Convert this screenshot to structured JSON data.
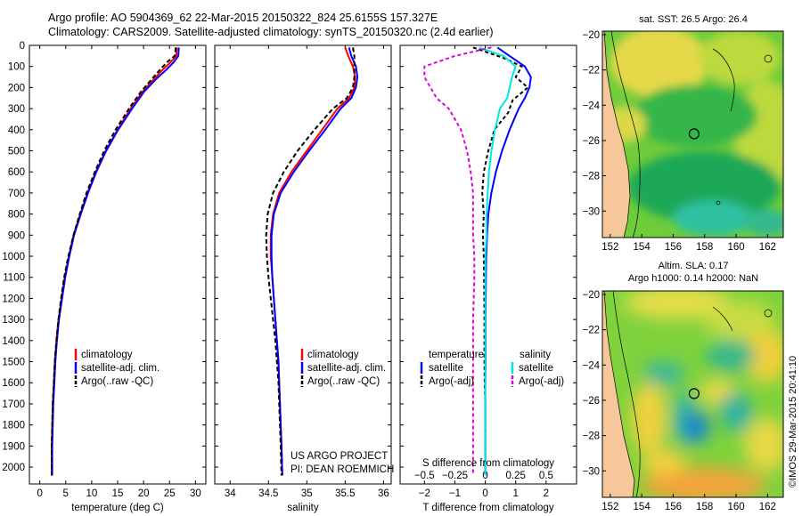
{
  "header": {
    "title_line1": "Argo profile: AO 5904369_62 22-Mar-2015 20150322_824 25.6155S 157.327E",
    "title_line2": "Climatology: CARS2009. Satellite-adjusted climatology: synTS_20150320.nc (2.4d earlier)"
  },
  "colors": {
    "climatology": "#ff0000",
    "satellite": "#0000ff",
    "argo": "#000000",
    "salinity_satellite": "#00e5e5",
    "salinity_argo": "#e000e0",
    "land": "#f7c79c"
  },
  "legend": {
    "climatology": "climatology",
    "satellite_adj": "satellite-adj. clim.",
    "argo_raw": "Argo(..raw -QC)",
    "temperature_header": "temperature",
    "salinity_header": "salinity",
    "satellite": "satellite",
    "argo_adj": "Argo(-adj)"
  },
  "credits": {
    "project": "US ARGO PROJECT",
    "pi": "PI: DEAN ROEMMICH",
    "imos": "©IMOS 29-Mar-2015 20:41:10"
  },
  "chart_data": [
    {
      "type": "line",
      "name": "temperature-profile",
      "xlabel": "temperature (deg C)",
      "ylabel": "",
      "xlim": [
        -2,
        32
      ],
      "ylim": [
        2080,
        0
      ],
      "xticks": [
        0,
        5,
        10,
        15,
        20,
        25,
        30
      ],
      "yticks": [
        0,
        100,
        200,
        300,
        400,
        500,
        600,
        700,
        800,
        900,
        1000,
        1100,
        1200,
        1300,
        1400,
        1500,
        1600,
        1700,
        1800,
        1900,
        2000
      ],
      "series": [
        {
          "name": "climatology",
          "color": "#ff0000",
          "dash": "",
          "x": [
            26.4,
            26.3,
            25.2,
            23.5,
            22.0,
            19.8,
            17.5,
            15.0,
            12.7,
            10.8,
            9.2,
            7.8,
            6.5,
            5.6,
            4.8,
            4.2,
            3.6,
            3.2,
            2.9,
            2.7,
            2.5,
            2.4,
            2.3,
            2.3
          ],
          "y": [
            10,
            50,
            80,
            120,
            160,
            220,
            300,
            400,
            500,
            600,
            700,
            800,
            900,
            1000,
            1100,
            1200,
            1300,
            1400,
            1500,
            1600,
            1700,
            1800,
            1900,
            2040
          ]
        },
        {
          "name": "satellite-adj. clim.",
          "color": "#0000ff",
          "dash": "",
          "x": [
            26.8,
            26.7,
            25.8,
            24.2,
            22.4,
            20.1,
            17.8,
            15.1,
            12.8,
            10.9,
            9.3,
            7.9,
            6.6,
            5.7,
            4.9,
            4.3,
            3.7,
            3.3,
            3.0,
            2.8,
            2.6,
            2.5,
            2.4,
            2.4
          ],
          "y": [
            10,
            50,
            80,
            120,
            160,
            220,
            300,
            400,
            500,
            600,
            700,
            800,
            900,
            1000,
            1100,
            1200,
            1300,
            1400,
            1500,
            1600,
            1700,
            1800,
            1900,
            2040
          ]
        },
        {
          "name": "Argo(..raw -QC)",
          "color": "#000000",
          "dash": "5,3",
          "x": [
            26.2,
            26.0,
            24.5,
            23.0,
            21.6,
            19.5,
            17.2,
            14.6,
            12.4,
            10.6,
            9.0,
            7.7,
            6.5,
            5.5,
            4.7,
            4.1,
            3.6,
            3.2,
            2.9,
            2.7,
            2.5,
            2.4,
            2.3,
            2.3
          ],
          "y": [
            10,
            50,
            80,
            120,
            160,
            220,
            300,
            400,
            500,
            600,
            700,
            800,
            900,
            1000,
            1100,
            1200,
            1300,
            1400,
            1500,
            1600,
            1700,
            1800,
            1900,
            2040
          ]
        }
      ]
    },
    {
      "type": "line",
      "name": "salinity-profile",
      "xlabel": "salinity",
      "ylabel": "",
      "xlim": [
        33.8,
        36.1
      ],
      "ylim": [
        2080,
        0
      ],
      "xticks": [
        34,
        34.5,
        35,
        35.5,
        36
      ],
      "xtick_labels": [
        "34",
        "34.5",
        "35",
        "35.5",
        "36"
      ],
      "series": [
        {
          "name": "climatology",
          "color": "#ff0000",
          "dash": "",
          "x": [
            35.5,
            35.54,
            35.6,
            35.63,
            35.62,
            35.55,
            35.4,
            35.2,
            35.0,
            34.8,
            34.64,
            34.56,
            34.53,
            34.53,
            34.55,
            34.57,
            34.59,
            34.61,
            34.63,
            34.64,
            34.65,
            34.66,
            34.67,
            34.68
          ],
          "y": [
            10,
            50,
            100,
            150,
            200,
            250,
            300,
            400,
            500,
            600,
            700,
            800,
            900,
            1000,
            1100,
            1200,
            1300,
            1400,
            1500,
            1600,
            1700,
            1800,
            1900,
            2040
          ]
        },
        {
          "name": "satellite-adj. clim.",
          "color": "#0000ff",
          "dash": "",
          "x": [
            35.55,
            35.58,
            35.64,
            35.66,
            35.64,
            35.58,
            35.44,
            35.24,
            35.03,
            34.83,
            34.66,
            34.57,
            34.54,
            34.54,
            34.55,
            34.57,
            34.59,
            34.61,
            34.63,
            34.64,
            34.65,
            34.66,
            34.67,
            34.68
          ],
          "y": [
            10,
            50,
            100,
            150,
            200,
            250,
            300,
            400,
            500,
            600,
            700,
            800,
            900,
            1000,
            1100,
            1200,
            1300,
            1400,
            1500,
            1600,
            1700,
            1800,
            1900,
            2040
          ]
        },
        {
          "name": "Argo(..raw -QC)",
          "color": "#000000",
          "dash": "5,3",
          "x": [
            35.6,
            35.62,
            35.62,
            35.62,
            35.6,
            35.52,
            35.34,
            35.1,
            34.88,
            34.7,
            34.56,
            34.49,
            34.47,
            34.48,
            34.5,
            34.53,
            34.56,
            34.59,
            34.61,
            34.63,
            34.64,
            34.65,
            34.66,
            34.67
          ],
          "y": [
            10,
            50,
            100,
            150,
            200,
            250,
            300,
            400,
            500,
            600,
            700,
            800,
            900,
            1000,
            1100,
            1200,
            1300,
            1400,
            1500,
            1600,
            1700,
            1800,
            1900,
            2040
          ]
        }
      ]
    },
    {
      "type": "line",
      "name": "difference-profile",
      "xlabel": "T difference from climatology",
      "xlabel_top": "S difference from climatology",
      "xlim": [
        -2.8,
        3.0
      ],
      "ylim": [
        2080,
        0
      ],
      "xticks": [
        -2,
        -1,
        0,
        1,
        2
      ],
      "xtick_labels": [
        "−2",
        "−1",
        "0",
        "1",
        "2"
      ],
      "s_ticks": [
        -0.5,
        -0.25,
        0,
        0.25,
        0.5
      ],
      "s_tick_labels": [
        "−0.5",
        "−0.25",
        "0",
        "0.25",
        "0.5"
      ],
      "series": [
        {
          "name": "temperature satellite",
          "color": "#0000ff",
          "dash": "",
          "x": [
            0.4,
            0.8,
            1.3,
            1.5,
            1.45,
            1.3,
            1.1,
            0.8,
            0.55,
            0.35,
            0.2,
            0.1,
            0.06,
            0.03,
            0.02,
            0.01,
            0.01,
            0.0,
            0.0,
            0.0,
            0.0
          ],
          "y": [
            10,
            50,
            100,
            150,
            200,
            250,
            300,
            400,
            500,
            600,
            700,
            800,
            900,
            1000,
            1100,
            1300,
            1500,
            1600,
            1700,
            1800,
            2040
          ]
        },
        {
          "name": "temperature Argo(-adj)",
          "color": "#000000",
          "dash": "4,3",
          "x": [
            -0.4,
            0.6,
            1.2,
            1.0,
            1.4,
            0.9,
            0.75,
            0.3,
            0.1,
            -0.05,
            -0.1,
            -0.05,
            -0.08,
            -0.05,
            -0.04,
            -0.03,
            -0.03,
            -0.02,
            0.0,
            0.0,
            0.0
          ],
          "y": [
            10,
            60,
            100,
            150,
            200,
            260,
            320,
            400,
            500,
            600,
            700,
            800,
            900,
            1000,
            1100,
            1300,
            1500,
            1600,
            1700,
            1800,
            2040
          ]
        },
        {
          "name": "salinity satellite",
          "color": "#00e5e5",
          "dash": "",
          "x": [
            -0.05,
            0.15,
            0.25,
            0.22,
            0.2,
            0.18,
            0.12,
            0.08,
            0.05,
            0.03,
            0.02,
            0.01,
            0.01,
            0.0,
            0.0,
            0.0,
            0.0,
            0.0,
            0.0,
            0.0,
            0.0
          ],
          "y": [
            10,
            50,
            100,
            150,
            200,
            250,
            300,
            400,
            500,
            600,
            700,
            800,
            900,
            1000,
            1100,
            1300,
            1500,
            1600,
            1700,
            1800,
            2040
          ]
        },
        {
          "name": "salinity Argo(-adj)",
          "color": "#e000e0",
          "dash": "4,3",
          "x": [
            0.05,
            -0.25,
            -0.5,
            -0.5,
            -0.45,
            -0.4,
            -0.3,
            -0.2,
            -0.15,
            -0.12,
            -0.1,
            -0.1,
            -0.1,
            -0.09,
            -0.09,
            -0.1,
            -0.1,
            -0.1,
            -0.1,
            -0.1,
            -0.1
          ],
          "y": [
            10,
            50,
            100,
            150,
            200,
            250,
            300,
            400,
            500,
            600,
            700,
            800,
            900,
            1000,
            1100,
            1300,
            1500,
            1600,
            1700,
            1800,
            2040
          ]
        }
      ]
    },
    {
      "type": "heatmap",
      "name": "sst-map",
      "title": "sat. SST: 26.5 Argo: 26.4",
      "xlim": [
        151.5,
        163
      ],
      "ylim": [
        -31.5,
        -19.8
      ],
      "xticks": [
        152,
        154,
        156,
        158,
        160,
        162
      ],
      "yticks": [
        -20,
        -22,
        -24,
        -26,
        -28,
        -30
      ],
      "ytick_labels": [
        "−20",
        "−22",
        "−24",
        "−26",
        "−28",
        "−30"
      ],
      "argo_position": [
        157.33,
        -25.62
      ]
    },
    {
      "type": "heatmap",
      "name": "sla-map",
      "title_line1": "Altim. SLA: 0.17",
      "title_line2": "Argo h1000: 0.14 h2000: NaN",
      "xlim": [
        151.5,
        163
      ],
      "ylim": [
        -31.5,
        -19.8
      ],
      "xticks": [
        152,
        154,
        156,
        158,
        160,
        162
      ],
      "yticks": [
        -20,
        -22,
        -24,
        -26,
        -28,
        -30
      ],
      "ytick_labels": [
        "−20",
        "−22",
        "−24",
        "−26",
        "−28",
        "−30"
      ],
      "argo_position": [
        157.33,
        -25.62
      ]
    }
  ]
}
